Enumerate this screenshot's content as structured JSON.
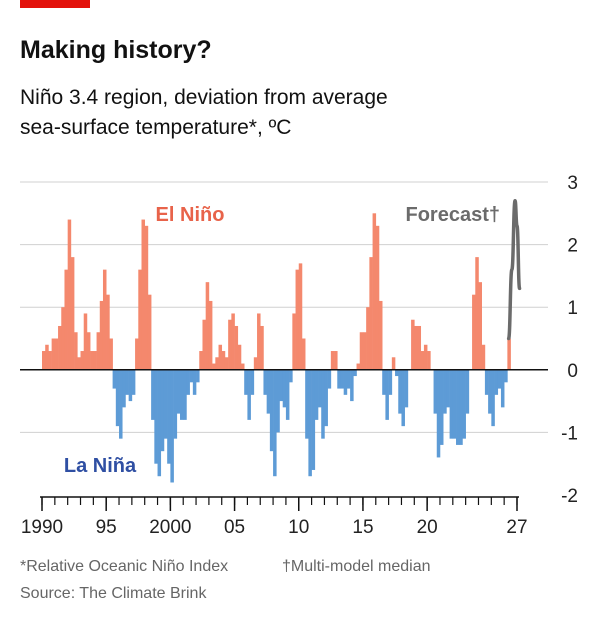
{
  "chart_data": {
    "type": "bar",
    "title": "Making history?",
    "subtitle": [
      "Niño 3.4 region, deviation from average",
      "sea-surface temperature*, ºC"
    ],
    "annotations": {
      "el_nino": "El Niño",
      "la_nina": "La Niña",
      "forecast": "Forecast†"
    },
    "footnotes": [
      "*Relative Oceanic Niño Index",
      "†Multi-model median"
    ],
    "source": "Source: The Climate Brink",
    "positive_color": "#f4886d",
    "negative_color": "#5d9bd6",
    "x": [
      1990,
      1990.25,
      1990.5,
      1990.75,
      1991,
      1991.25,
      1991.5,
      1991.75,
      1992,
      1992.25,
      1992.5,
      1992.75,
      1993,
      1993.25,
      1993.5,
      1993.75,
      1994,
      1994.25,
      1994.5,
      1994.75,
      1995,
      1995.25,
      1995.5,
      1995.75,
      1996,
      1996.25,
      1996.5,
      1996.75,
      1997,
      1997.25,
      1997.5,
      1997.75,
      1998,
      1998.25,
      1998.5,
      1998.75,
      1999,
      1999.25,
      1999.5,
      1999.75,
      2000,
      2000.25,
      2000.5,
      2000.75,
      2001,
      2001.25,
      2001.5,
      2001.75,
      2002,
      2002.25,
      2002.5,
      2002.75,
      2003,
      2003.25,
      2003.5,
      2003.75,
      2004,
      2004.25,
      2004.5,
      2004.75,
      2005,
      2005.25,
      2005.5,
      2005.75,
      2006,
      2006.25,
      2006.5,
      2006.75,
      2007,
      2007.25,
      2007.5,
      2007.75,
      2008,
      2008.25,
      2008.5,
      2008.75,
      2009,
      2009.25,
      2009.5,
      2009.75,
      2010,
      2010.25,
      2010.5,
      2010.75,
      2011,
      2011.25,
      2011.5,
      2011.75,
      2012,
      2012.25,
      2012.5,
      2012.75,
      2013,
      2013.25,
      2013.5,
      2013.75,
      2014,
      2014.25,
      2014.5,
      2014.75,
      2015,
      2015.25,
      2015.5,
      2015.75,
      2016,
      2016.25,
      2016.5,
      2016.75,
      2017,
      2017.25,
      2017.5,
      2017.75,
      2018,
      2018.25,
      2018.5,
      2018.75,
      2019,
      2019.25,
      2019.5,
      2019.75,
      2020,
      2020.25,
      2020.5,
      2020.75,
      2021,
      2021.25,
      2021.5,
      2021.75,
      2022,
      2022.25,
      2022.5,
      2022.75,
      2023,
      2023.25,
      2023.5,
      2023.75,
      2024,
      2024.25,
      2024.5,
      2024.75,
      2025,
      2025.25,
      2025.5,
      2025.75,
      2026,
      2026.25
    ],
    "values": [
      0.3,
      0.4,
      0.3,
      0.5,
      0.5,
      0.7,
      1.0,
      1.6,
      2.4,
      1.8,
      0.6,
      0.2,
      0.3,
      0.9,
      0.6,
      0.3,
      0.3,
      0.6,
      1.1,
      1.6,
      1.2,
      0.5,
      -0.3,
      -0.9,
      -1.1,
      -0.6,
      -0.4,
      -0.5,
      -0.4,
      0.5,
      1.6,
      2.4,
      2.3,
      1.2,
      -0.8,
      -1.5,
      -1.7,
      -1.3,
      -1.1,
      -1.5,
      -1.8,
      -1.1,
      -0.7,
      -0.8,
      -0.8,
      -0.4,
      -0.2,
      -0.4,
      -0.2,
      0.3,
      0.8,
      1.4,
      1.1,
      0.1,
      0.2,
      0.4,
      0.3,
      0.2,
      0.8,
      0.9,
      0.7,
      0.4,
      0.1,
      -0.4,
      -0.8,
      -0.4,
      0.2,
      0.9,
      0.7,
      -0.4,
      -0.7,
      -1.3,
      -1.7,
      -1.0,
      -0.5,
      -0.6,
      -0.8,
      -0.2,
      0.9,
      1.6,
      1.7,
      0.5,
      -1.1,
      -1.7,
      -1.6,
      -0.8,
      -0.6,
      -1.1,
      -0.9,
      -0.3,
      0.3,
      0.3,
      -0.3,
      -0.3,
      -0.4,
      -0.3,
      -0.5,
      -0.1,
      0.1,
      0.6,
      0.6,
      1.0,
      1.8,
      2.5,
      2.3,
      1.1,
      -0.4,
      -0.8,
      -0.4,
      0.2,
      -0.1,
      -0.7,
      -0.9,
      -0.6,
      0.0,
      0.8,
      0.7,
      0.7,
      0.3,
      0.4,
      0.3,
      0.0,
      -0.7,
      -1.4,
      -1.2,
      -0.7,
      -0.6,
      -1.1,
      -1.1,
      -1.2,
      -1.2,
      -1.1,
      -0.7,
      0.0,
      1.2,
      1.8,
      1.4,
      0.4,
      -0.4,
      -0.7,
      -0.9,
      -0.4,
      -0.3,
      -0.6,
      -0.2,
      0.5
    ],
    "forecast": {
      "color": "#6b6b6b",
      "x": [
        2026.35,
        2026.6,
        2026.85,
        2027.0,
        2027.2
      ],
      "values": [
        0.5,
        1.6,
        2.7,
        2.3,
        1.3
      ]
    },
    "xlim": [
      1990,
      2027
    ],
    "xticks": [
      1990,
      {
        "value": 1995,
        "label": "95"
      },
      2000,
      {
        "value": 2005,
        "label": "05"
      },
      {
        "value": 2010,
        "label": "10"
      },
      {
        "value": 2015,
        "label": "15"
      },
      {
        "value": 2020,
        "label": "20"
      },
      {
        "value": 2027,
        "label": "27"
      }
    ],
    "xminorticks": [
      1990,
      1991,
      1992,
      1993,
      1994,
      1995,
      1996,
      1997,
      1998,
      1999,
      2000,
      2001,
      2002,
      2003,
      2004,
      2005,
      2006,
      2007,
      2008,
      2009,
      2010,
      2011,
      2012,
      2013,
      2014,
      2015,
      2016,
      2017,
      2018,
      2019,
      2020,
      2021,
      2022,
      2023,
      2024,
      2025,
      2026,
      2027
    ],
    "ylim": [
      -2,
      3
    ],
    "yticks": [
      -2,
      -1,
      0,
      1,
      2,
      3
    ],
    "grid": true
  }
}
